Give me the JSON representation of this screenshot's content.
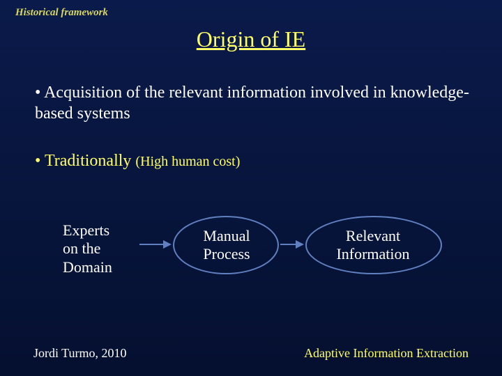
{
  "colors": {
    "background_top": "#0a1a4a",
    "background_bottom": "#051030",
    "accent_yellow": "#ffff66",
    "header_yellow": "#d8d860",
    "text_white": "#ffffff",
    "shape_stroke": "#6080c0"
  },
  "header": {
    "label": "Historical framework"
  },
  "title": "Origin of IE",
  "bullets": {
    "b1": "• Acquisition of the relevant information involved in knowledge-based systems",
    "b2_lead": "• Traditionally",
    "b2_paren": "(High human cost)"
  },
  "flow": {
    "type": "flowchart",
    "nodes": [
      {
        "id": "experts",
        "label_l1": "Experts",
        "label_l2": "on the",
        "label_l3": "Domain",
        "shape": "none"
      },
      {
        "id": "manual",
        "label_l1": "Manual",
        "label_l2": "Process",
        "shape": "ellipse"
      },
      {
        "id": "relevant",
        "label_l1": "Relevant",
        "label_l2": "Information",
        "shape": "ellipse"
      }
    ],
    "edges": [
      {
        "from": "experts",
        "to": "manual"
      },
      {
        "from": "manual",
        "to": "relevant"
      }
    ],
    "node_fontsize": 22,
    "stroke_width": 2
  },
  "footer": {
    "left": "Jordi Turmo, 2010",
    "right": "Adaptive Information Extraction"
  }
}
